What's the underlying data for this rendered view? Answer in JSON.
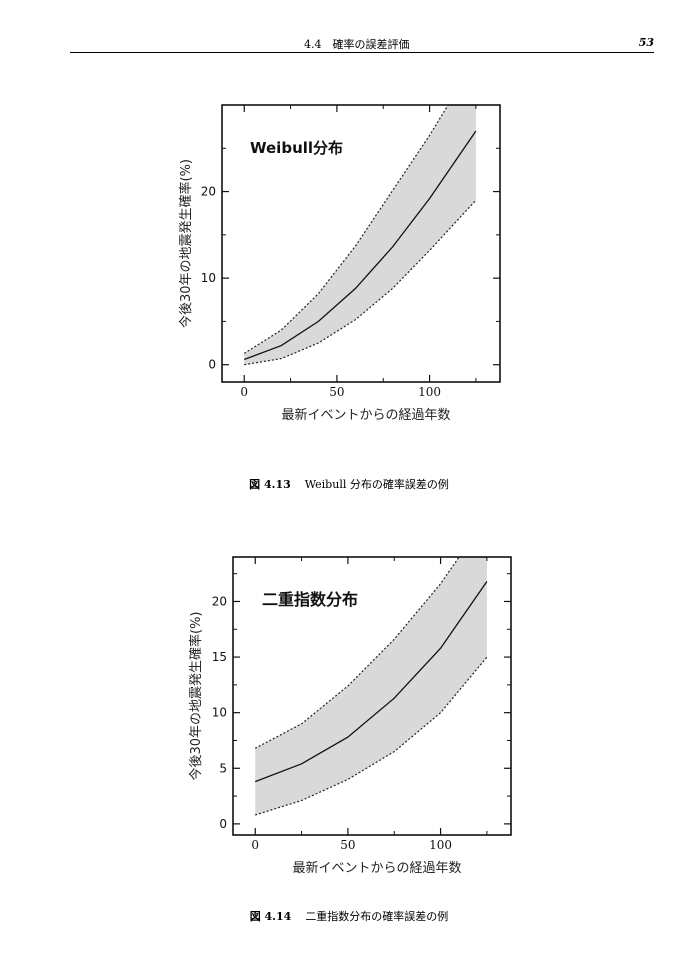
{
  "header": {
    "section": "4.4　確率の誤差評価",
    "page": "53"
  },
  "figures": [
    {
      "caption_num": "図 4.13",
      "caption_text": "Weibull 分布の確率誤差の例"
    },
    {
      "caption_num": "図 4.14",
      "caption_text": "二重指数分布の確率誤差の例"
    }
  ],
  "chart_data": [
    {
      "type": "area",
      "title": "Weibull分布",
      "xlabel": "最新イベントからの経過年数",
      "ylabel": "今後30年の地震発生確率(%)",
      "xlim": [
        -12,
        138
      ],
      "ylim": [
        -2,
        30
      ],
      "xticks": [
        0,
        50,
        100
      ],
      "yticks": [
        0,
        10,
        20
      ],
      "grid": false,
      "series": [
        {
          "role": "central",
          "x": [
            0,
            20,
            40,
            60,
            80,
            100,
            125
          ],
          "y": [
            0.6,
            2.2,
            5.0,
            8.8,
            13.6,
            19.2,
            27.0
          ]
        },
        {
          "role": "upper",
          "x": [
            0,
            20,
            40,
            60,
            80,
            100,
            110,
            125
          ],
          "y": [
            1.3,
            4.0,
            8.2,
            13.7,
            20.1,
            26.5,
            30.0,
            30.0
          ]
        },
        {
          "role": "lower",
          "x": [
            0,
            20,
            40,
            60,
            80,
            100,
            125
          ],
          "y": [
            0.0,
            0.7,
            2.5,
            5.2,
            8.8,
            13.2,
            19.0
          ]
        }
      ]
    },
    {
      "type": "area",
      "title": "二重指数分布",
      "xlabel": "最新イベントからの経過年数",
      "ylabel": "今後30年の地震発生確率(%)",
      "xlim": [
        -12,
        138
      ],
      "ylim": [
        -1,
        24
      ],
      "xticks": [
        0,
        50,
        100
      ],
      "yticks": [
        0,
        5,
        10,
        15,
        20
      ],
      "grid": false,
      "series": [
        {
          "role": "central",
          "x": [
            0,
            25,
            50,
            75,
            100,
            125
          ],
          "y": [
            3.8,
            5.4,
            7.8,
            11.3,
            15.8,
            21.8
          ]
        },
        {
          "role": "upper",
          "x": [
            0,
            25,
            50,
            75,
            100,
            110,
            125
          ],
          "y": [
            6.8,
            9.0,
            12.4,
            16.6,
            21.6,
            24.0,
            24.0
          ]
        },
        {
          "role": "lower",
          "x": [
            0,
            25,
            50,
            75,
            100,
            125
          ],
          "y": [
            0.8,
            2.1,
            4.0,
            6.5,
            10.0,
            15.0
          ]
        }
      ]
    }
  ]
}
